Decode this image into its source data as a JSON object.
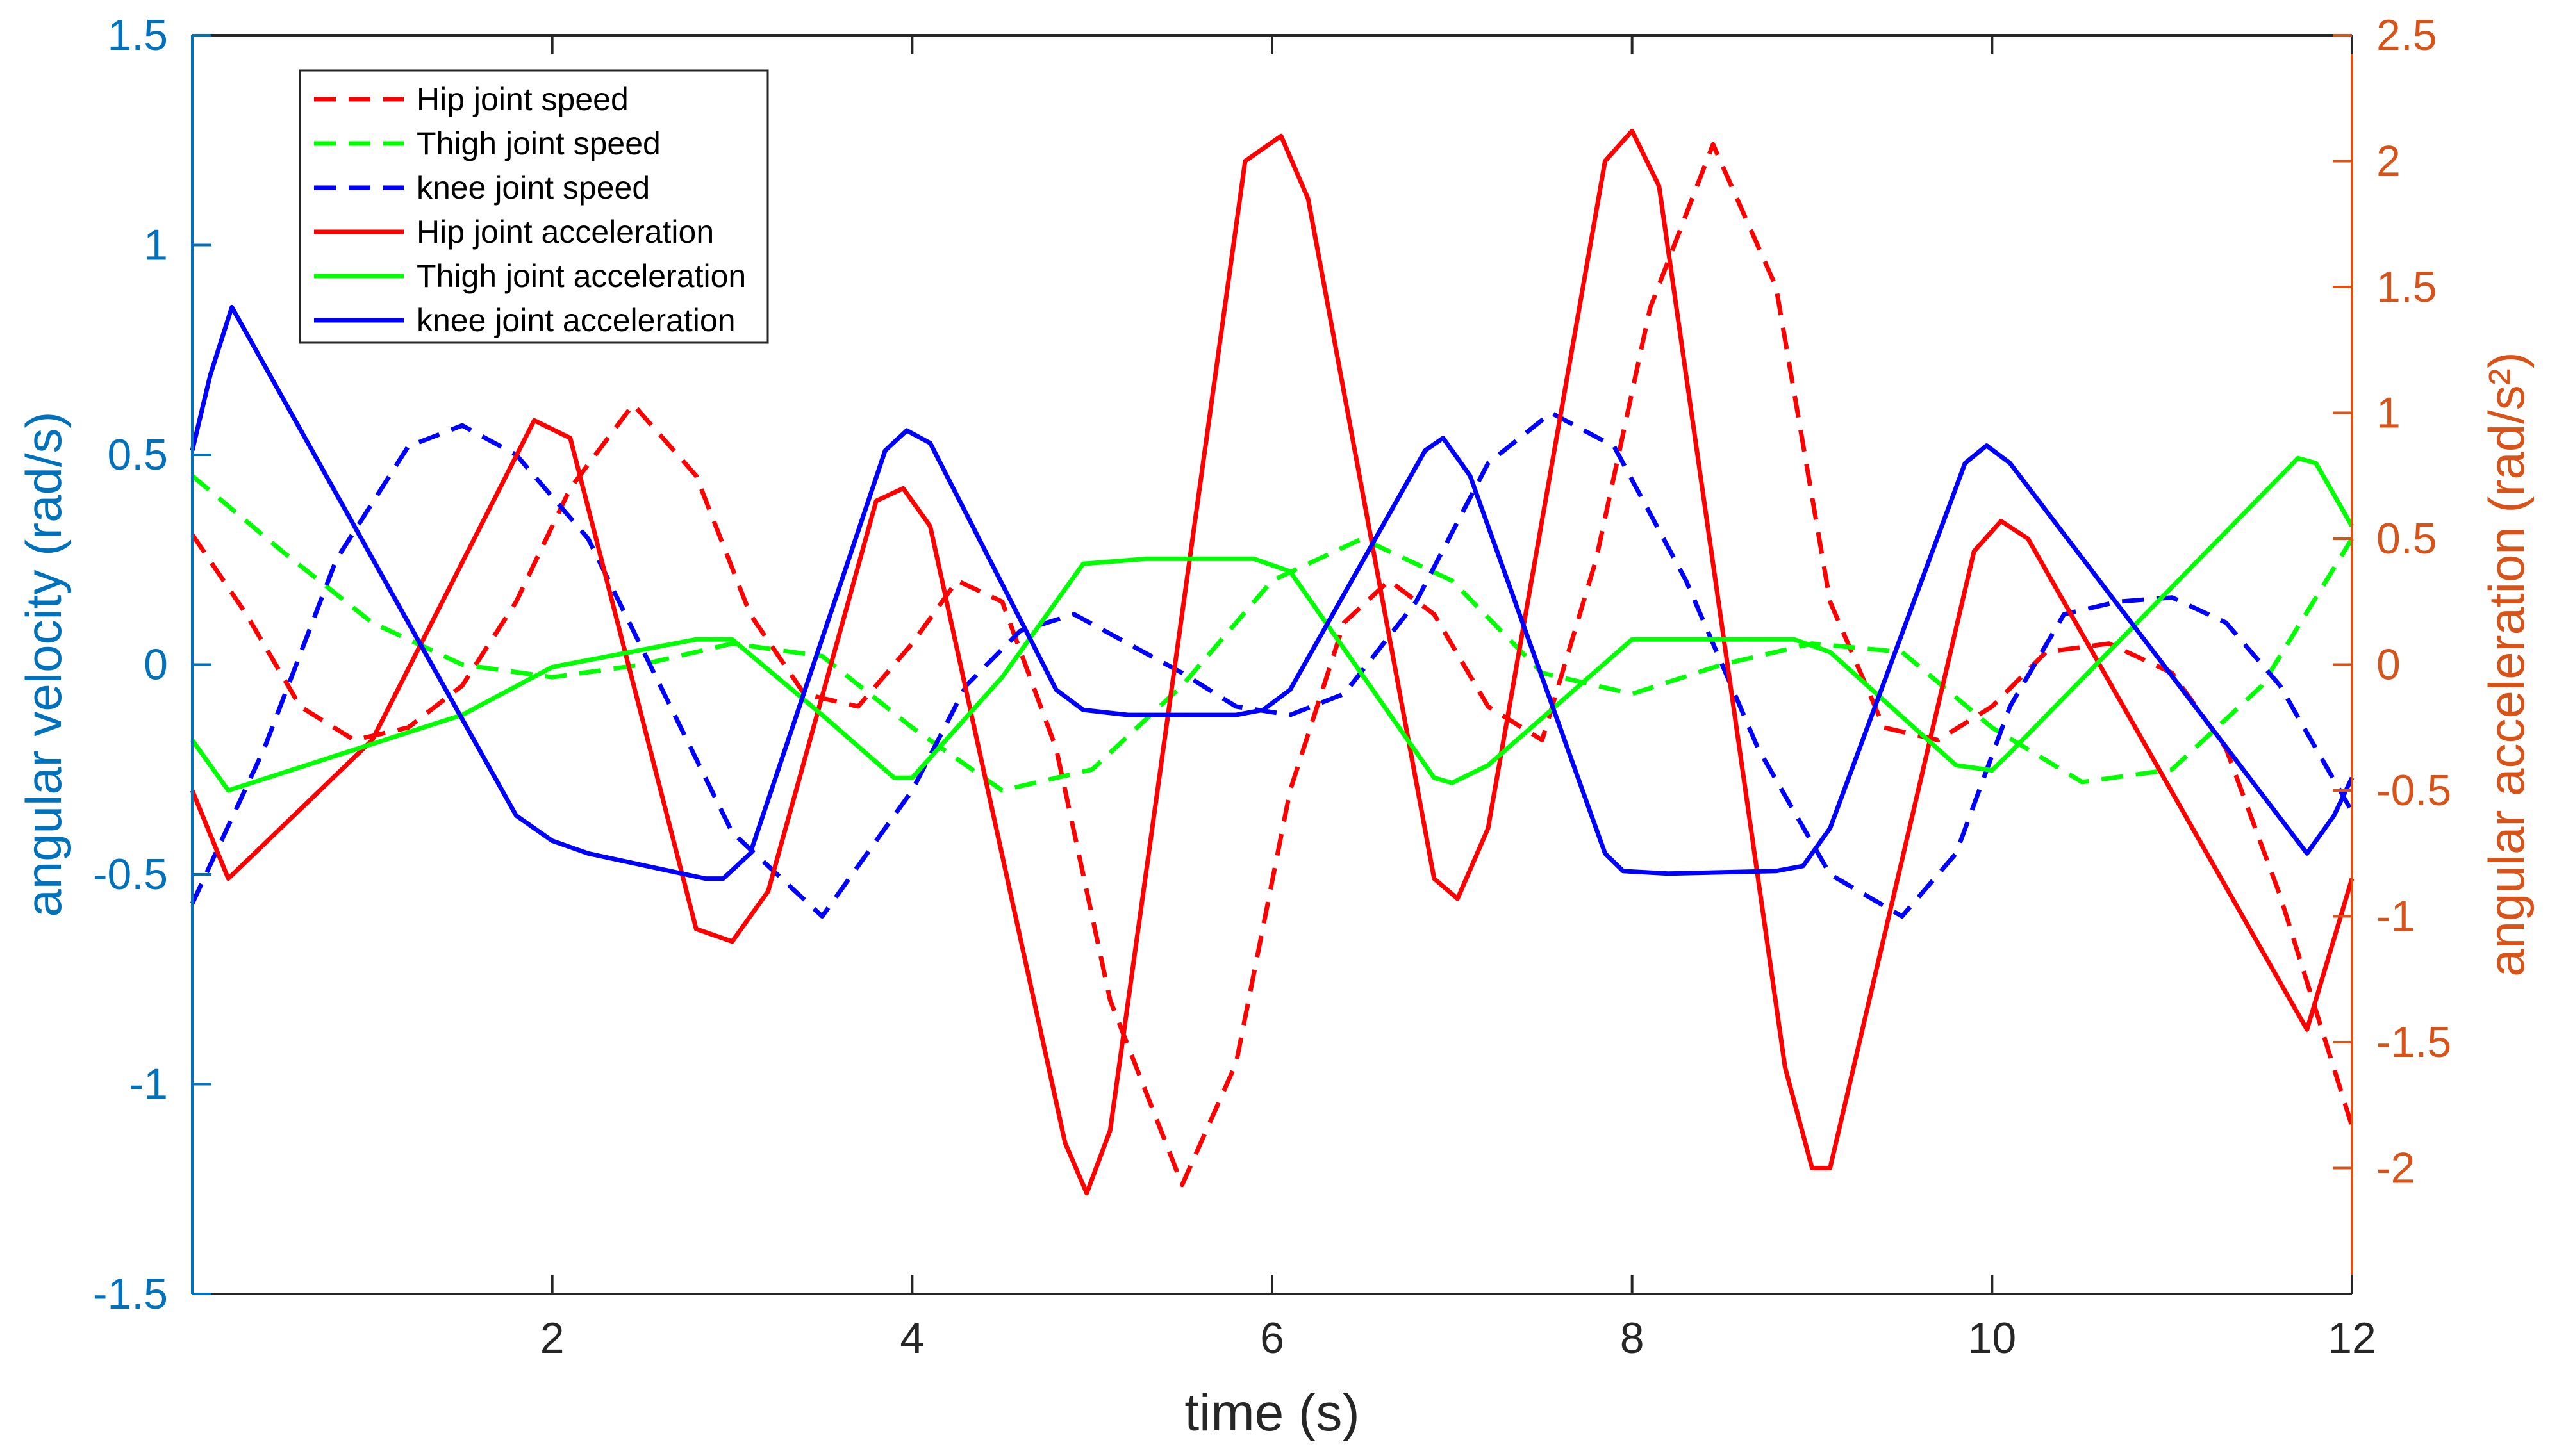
{
  "chart_data": {
    "type": "line",
    "title": "",
    "xlabel": "time (s)",
    "ylabel_left": "angular velocity (rad/s)",
    "ylabel_right": "angular acceleration (rad/s²)",
    "xlim": [
      0,
      12
    ],
    "ylim_left": [
      -1.5,
      1.5
    ],
    "ylim_right": [
      -2.5,
      2.5
    ],
    "x_ticks": [
      2,
      4,
      6,
      8,
      10,
      12
    ],
    "x_tick_labels": [
      "2",
      "4",
      "6",
      "8",
      "10",
      "12"
    ],
    "y_left_ticks": [
      -1.5,
      -1,
      -0.5,
      0,
      0.5,
      1,
      1.5
    ],
    "y_left_tick_labels": [
      "-1.5",
      "-1",
      "-0.5",
      "0",
      "0.5",
      "1",
      "1.5"
    ],
    "y_right_ticks": [
      -2,
      -1.5,
      -1,
      -0.5,
      0,
      0.5,
      1,
      1.5,
      2,
      2.5
    ],
    "y_right_tick_labels": [
      "-2",
      "-1.5",
      "-1",
      "-0.5",
      "0",
      "0.5",
      "1",
      "1.5",
      "2",
      "2.5"
    ],
    "grid": false,
    "legend_position": "top-left",
    "colors": {
      "left_axis": "#0072BD",
      "right_axis": "#D95319",
      "hip": "#FF0000",
      "thigh": "#00FF00",
      "knee": "#0000FF",
      "axes": "#262626"
    },
    "series": [
      {
        "name": "Hip joint speed",
        "axis": "left",
        "style": "dashed",
        "color_key": "hip",
        "x": [
          0,
          0.3,
          0.6,
          0.9,
          1.2,
          1.5,
          1.8,
          2.1,
          2.45,
          2.8,
          3.1,
          3.4,
          3.7,
          4.0,
          4.25,
          4.5,
          4.8,
          5.1,
          5.5,
          5.8,
          6.1,
          6.4,
          6.65,
          6.9,
          7.2,
          7.5,
          7.8,
          8.1,
          8.45,
          8.8,
          9.1,
          9.4,
          9.7,
          10.0,
          10.3,
          10.65,
          11.0,
          11.3,
          11.6,
          12.0
        ],
        "values": [
          0.31,
          0.12,
          -0.1,
          -0.18,
          -0.15,
          -0.05,
          0.15,
          0.42,
          0.62,
          0.45,
          0.12,
          -0.07,
          -0.1,
          0.05,
          0.2,
          0.15,
          -0.2,
          -0.8,
          -1.24,
          -0.95,
          -0.3,
          0.1,
          0.2,
          0.12,
          -0.1,
          -0.18,
          0.25,
          0.85,
          1.24,
          0.9,
          0.15,
          -0.15,
          -0.18,
          -0.1,
          0.03,
          0.05,
          -0.02,
          -0.2,
          -0.55,
          -1.1
        ]
      },
      {
        "name": "Thigh joint speed",
        "axis": "left",
        "style": "dashed",
        "color_key": "thigh",
        "x": [
          0,
          0.5,
          1.0,
          1.5,
          2.0,
          2.5,
          3.0,
          3.5,
          4.0,
          4.5,
          5.0,
          5.5,
          6.0,
          6.5,
          7.0,
          7.5,
          8.0,
          8.5,
          9.0,
          9.5,
          10.0,
          10.5,
          11.0,
          11.5,
          12.0
        ],
        "values": [
          0.45,
          0.27,
          0.1,
          0.0,
          -0.03,
          0.0,
          0.05,
          0.02,
          -0.15,
          -0.3,
          -0.25,
          -0.05,
          0.2,
          0.3,
          0.2,
          -0.02,
          -0.07,
          0.0,
          0.05,
          0.03,
          -0.15,
          -0.28,
          -0.25,
          -0.05,
          0.3
        ]
      },
      {
        "name": "knee joint speed",
        "axis": "left",
        "style": "dashed",
        "color_key": "knee",
        "x": [
          0,
          0.4,
          0.8,
          1.2,
          1.5,
          1.8,
          2.2,
          2.6,
          3.0,
          3.5,
          4.0,
          4.3,
          4.6,
          4.9,
          5.2,
          5.5,
          5.8,
          6.1,
          6.4,
          6.8,
          7.2,
          7.55,
          7.9,
          8.3,
          8.7,
          9.1,
          9.5,
          9.8,
          10.1,
          10.4,
          10.7,
          11.0,
          11.3,
          11.6,
          12.0
        ],
        "values": [
          -0.57,
          -0.2,
          0.25,
          0.52,
          0.57,
          0.5,
          0.3,
          -0.05,
          -0.4,
          -0.6,
          -0.3,
          -0.05,
          0.08,
          0.12,
          0.05,
          -0.02,
          -0.1,
          -0.12,
          -0.07,
          0.15,
          0.48,
          0.6,
          0.52,
          0.2,
          -0.2,
          -0.5,
          -0.6,
          -0.45,
          -0.1,
          0.12,
          0.15,
          0.16,
          0.1,
          -0.05,
          -0.35
        ]
      },
      {
        "name": "Hip joint acceleration",
        "axis": "right",
        "style": "solid",
        "color_key": "hip",
        "x": [
          0,
          0.2,
          1.0,
          1.9,
          2.1,
          2.8,
          3.0,
          3.2,
          3.8,
          3.95,
          4.1,
          4.85,
          4.97,
          5.1,
          5.85,
          6.05,
          6.2,
          6.9,
          7.03,
          7.2,
          7.85,
          8.0,
          8.15,
          8.85,
          9.0,
          9.1,
          9.9,
          10.05,
          10.2,
          11.75,
          12.0
        ],
        "values": [
          -0.5,
          -0.85,
          -0.3,
          0.97,
          0.9,
          -1.05,
          -1.1,
          -0.9,
          0.65,
          0.7,
          0.55,
          -1.9,
          -2.1,
          -1.85,
          2.0,
          2.1,
          1.85,
          -0.85,
          -0.93,
          -0.65,
          2.0,
          2.12,
          1.9,
          -1.6,
          -2.0,
          -2.0,
          0.45,
          0.57,
          0.5,
          -1.45,
          -0.85
        ]
      },
      {
        "name": "Thigh joint acceleration",
        "axis": "right",
        "style": "solid",
        "color_key": "thigh",
        "x": [
          0,
          0.2,
          1.5,
          2.0,
          2.8,
          3.0,
          3.5,
          3.9,
          4.0,
          4.5,
          4.95,
          5.3,
          5.9,
          6.1,
          6.9,
          7.0,
          7.2,
          8.0,
          8.9,
          9.1,
          9.8,
          10.0,
          10.1,
          11.7,
          11.8,
          12.0
        ],
        "values": [
          -0.3,
          -0.5,
          -0.2,
          -0.01,
          0.1,
          0.1,
          -0.2,
          -0.45,
          -0.45,
          -0.05,
          0.4,
          0.42,
          0.42,
          0.37,
          -0.45,
          -0.47,
          -0.4,
          0.1,
          0.1,
          0.05,
          -0.4,
          -0.42,
          -0.35,
          0.82,
          0.8,
          0.55
        ]
      },
      {
        "name": "knee joint acceleration",
        "axis": "right",
        "style": "solid",
        "color_key": "knee",
        "x": [
          0,
          0.1,
          0.22,
          1.8,
          2.0,
          2.2,
          2.85,
          2.95,
          3.1,
          3.85,
          3.97,
          4.1,
          4.8,
          4.95,
          5.2,
          5.8,
          5.95,
          6.1,
          6.85,
          6.95,
          7.1,
          7.85,
          7.95,
          8.2,
          8.8,
          8.95,
          9.1,
          9.85,
          9.97,
          10.1,
          11.75,
          11.9,
          12.0
        ],
        "values": [
          0.85,
          1.15,
          1.42,
          -0.6,
          -0.7,
          -0.75,
          -0.85,
          -0.85,
          -0.75,
          0.85,
          0.93,
          0.88,
          -0.1,
          -0.18,
          -0.2,
          -0.2,
          -0.18,
          -0.1,
          0.85,
          0.9,
          0.75,
          -0.75,
          -0.82,
          -0.83,
          -0.82,
          -0.8,
          -0.65,
          0.8,
          0.87,
          0.8,
          -0.75,
          -0.6,
          -0.45
        ]
      }
    ]
  }
}
